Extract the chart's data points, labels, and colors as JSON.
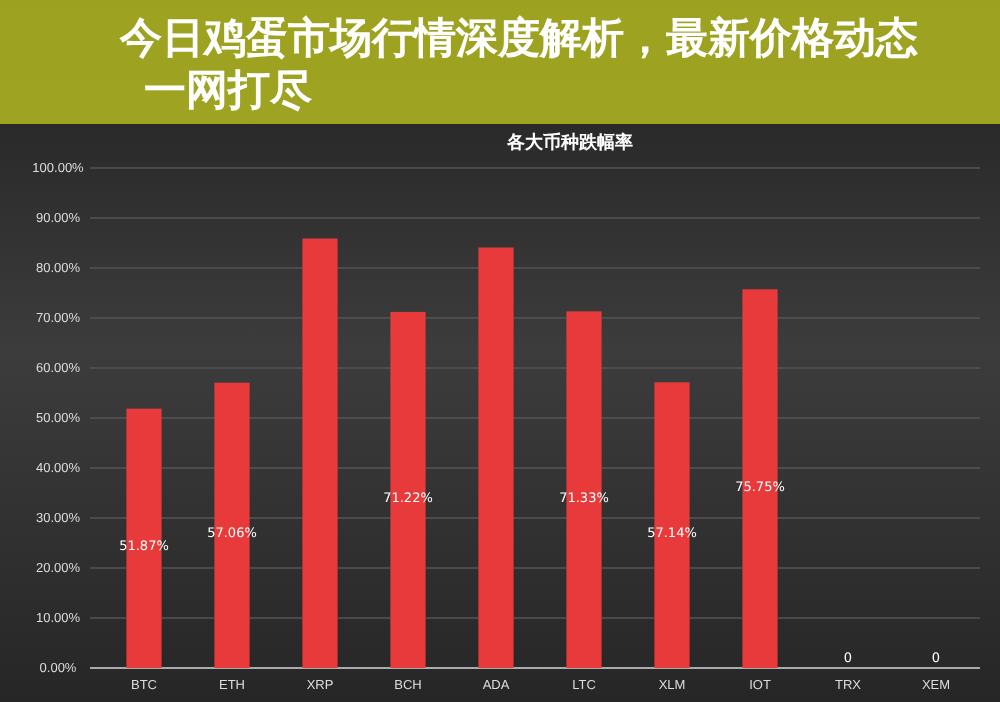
{
  "chart_data": {
    "type": "bar",
    "title": "各大币种跌幅率",
    "categories": [
      "BTC",
      "ETH",
      "XRP",
      "BCH",
      "ADA",
      "LTC",
      "XLM",
      "IOT",
      "TRX",
      "XEM"
    ],
    "values": [
      51.87,
      57.06,
      85.9,
      71.22,
      84.1,
      71.33,
      57.14,
      75.75,
      0,
      0
    ],
    "value_labels": [
      "51.87%",
      "57.06%",
      null,
      "71.22%",
      null,
      "71.33%",
      "57.14%",
      "75.75%",
      "0",
      "0"
    ],
    "color": "#e83a3a",
    "ylim": [
      0,
      100
    ],
    "yticks": [
      {
        "value": 0,
        "label": "0.00%"
      },
      {
        "value": 10,
        "label": "10.00%"
      },
      {
        "value": 20,
        "label": "20.00%"
      },
      {
        "value": 30,
        "label": "30.00%"
      },
      {
        "value": 40,
        "label": "40.00%"
      },
      {
        "value": 50,
        "label": "50.00%"
      },
      {
        "value": 60,
        "label": "60.00%"
      },
      {
        "value": 70,
        "label": "70.00%"
      },
      {
        "value": 80,
        "label": "80.00%"
      },
      {
        "value": 90,
        "label": "90.00%"
      },
      {
        "value": 100,
        "label": "100.00%"
      }
    ],
    "grid": "y",
    "annotations": [
      "今日鸡蛋市场行情深度解析，最新价格动态一网打尽"
    ]
  }
}
